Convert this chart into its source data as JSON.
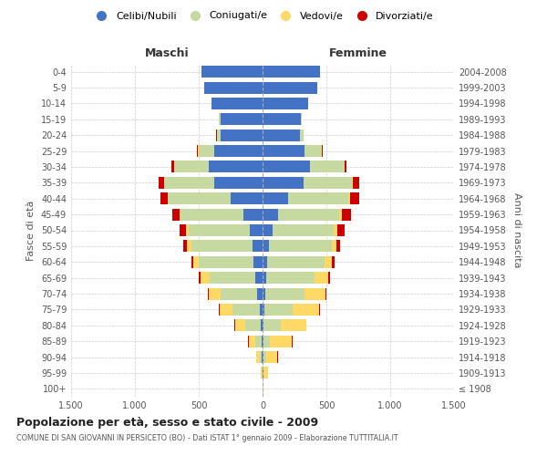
{
  "age_groups": [
    "100+",
    "95-99",
    "90-94",
    "85-89",
    "80-84",
    "75-79",
    "70-74",
    "65-69",
    "60-64",
    "55-59",
    "50-54",
    "45-49",
    "40-44",
    "35-39",
    "30-34",
    "25-29",
    "20-24",
    "15-19",
    "10-14",
    "5-9",
    "0-4"
  ],
  "birth_years": [
    "≤ 1908",
    "1909-1913",
    "1914-1918",
    "1919-1923",
    "1924-1928",
    "1929-1933",
    "1934-1938",
    "1939-1943",
    "1944-1948",
    "1949-1953",
    "1954-1958",
    "1959-1963",
    "1964-1968",
    "1969-1973",
    "1974-1978",
    "1979-1983",
    "1984-1988",
    "1989-1993",
    "1994-1998",
    "1999-2003",
    "2004-2008"
  ],
  "male": {
    "celibi": [
      0,
      2,
      5,
      5,
      15,
      25,
      40,
      55,
      70,
      80,
      100,
      150,
      250,
      380,
      420,
      380,
      330,
      330,
      400,
      460,
      480
    ],
    "coniugati": [
      0,
      5,
      20,
      50,
      120,
      210,
      290,
      360,
      430,
      480,
      480,
      490,
      490,
      390,
      270,
      120,
      30,
      10,
      0,
      0,
      0
    ],
    "vedovi": [
      0,
      5,
      25,
      55,
      80,
      100,
      90,
      70,
      40,
      30,
      20,
      10,
      5,
      5,
      5,
      5,
      0,
      0,
      0,
      0,
      0
    ],
    "divorziati": [
      0,
      0,
      0,
      5,
      5,
      5,
      10,
      15,
      20,
      30,
      50,
      60,
      55,
      40,
      20,
      10,
      5,
      5,
      0,
      0,
      0
    ]
  },
  "female": {
    "nubili": [
      0,
      5,
      10,
      5,
      10,
      15,
      20,
      25,
      35,
      50,
      80,
      120,
      200,
      320,
      370,
      330,
      290,
      300,
      360,
      430,
      450
    ],
    "coniugate": [
      0,
      5,
      20,
      55,
      130,
      220,
      310,
      380,
      450,
      490,
      480,
      480,
      470,
      380,
      270,
      130,
      30,
      10,
      0,
      0,
      0
    ],
    "vedove": [
      5,
      30,
      85,
      170,
      200,
      210,
      160,
      110,
      60,
      40,
      25,
      20,
      15,
      10,
      5,
      5,
      0,
      0,
      0,
      0,
      0
    ],
    "divorziate": [
      0,
      0,
      5,
      5,
      5,
      5,
      10,
      15,
      20,
      30,
      55,
      75,
      70,
      45,
      15,
      5,
      0,
      0,
      0,
      0,
      0
    ]
  },
  "colors": {
    "celibi": "#4472C4",
    "coniugati": "#c5d9a0",
    "vedovi": "#FFD966",
    "divorziati": "#CC0000"
  },
  "title": "Popolazione per età, sesso e stato civile - 2009",
  "subtitle": "COMUNE DI SAN GIOVANNI IN PERSICETO (BO) - Dati ISTAT 1° gennaio 2009 - Elaborazione TUTTITALIA.IT",
  "xlabel_left": "Maschi",
  "xlabel_right": "Femmine",
  "ylabel_left": "Fasce di età",
  "ylabel_right": "Anni di nascita",
  "xlim": 1500,
  "legend_labels": [
    "Celibi/Nubili",
    "Coniugati/e",
    "Vedovi/e",
    "Divorziati/e"
  ],
  "background_color": "#ffffff",
  "grid_color": "#cccccc"
}
